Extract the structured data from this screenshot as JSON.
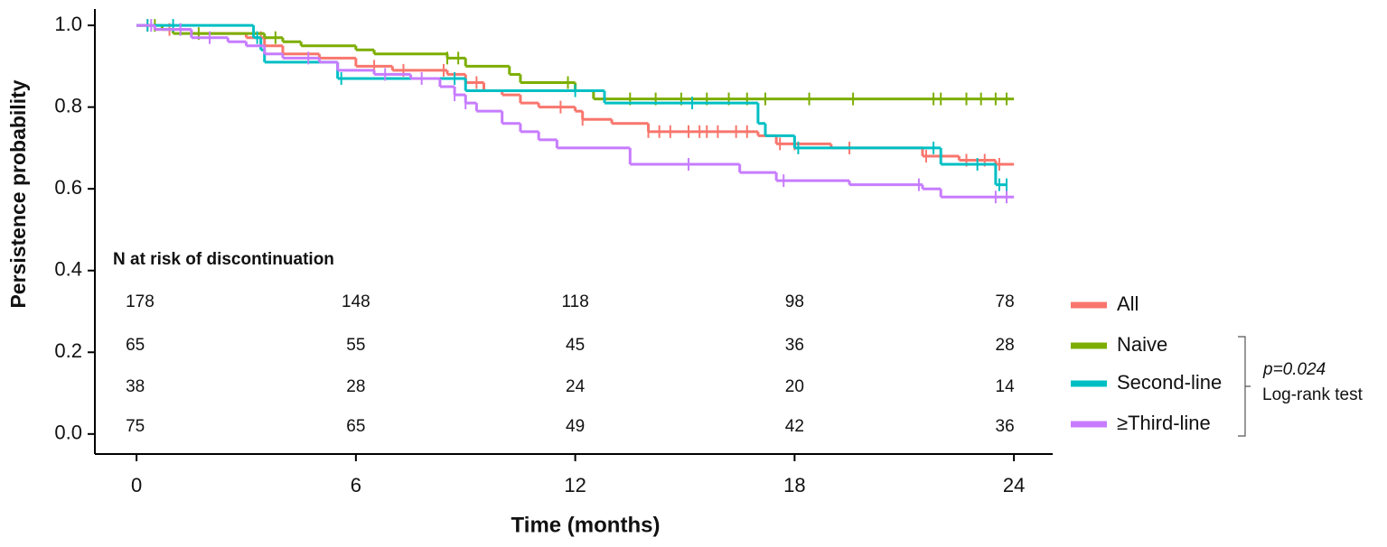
{
  "chart_data": {
    "type": "step",
    "y_label": "Persistence probability",
    "x_label": "Time (months)",
    "xlim": [
      -1.14,
      25.06
    ],
    "ylim": [
      -0.049,
      1.04
    ],
    "xticks": [
      0,
      6,
      12,
      18,
      24
    ],
    "yticks": [
      {
        "value": 0,
        "label": "0.0"
      },
      {
        "value": 0.2,
        "label": "0.2"
      },
      {
        "value": 0.4,
        "label": "0.4"
      },
      {
        "value": 0.6,
        "label": "0.6"
      },
      {
        "value": 0.8,
        "label": "0.8"
      },
      {
        "value": 1,
        "label": "1.0"
      }
    ],
    "series": [
      {
        "name": "All",
        "color": "#f8766d",
        "x": [
          0,
          0.5,
          1.5,
          3,
          3.5,
          4,
          5,
          6,
          7,
          8.5,
          9,
          9.5,
          10,
          10.5,
          11,
          12,
          12.2,
          13,
          14,
          17,
          17.5,
          19,
          21.5,
          22.5,
          23.5,
          24
        ],
        "values": [
          1.0,
          0.99,
          0.98,
          0.97,
          0.95,
          0.93,
          0.92,
          0.9,
          0.89,
          0.88,
          0.86,
          0.84,
          0.83,
          0.81,
          0.8,
          0.79,
          0.77,
          0.76,
          0.74,
          0.73,
          0.71,
          0.7,
          0.68,
          0.67,
          0.66,
          0.66
        ],
        "censored": [
          0.3,
          0.9,
          3.4,
          6.5,
          7.3,
          8.4,
          9.3,
          11.6,
          12.2,
          14.0,
          14.3,
          14.6,
          15.1,
          15.4,
          15.6,
          15.9,
          16.4,
          16.7,
          17.6,
          18.0,
          19.5,
          21.6,
          22.7,
          23.2,
          23.6
        ]
      },
      {
        "name": "Naive",
        "color": "#7cae00",
        "x": [
          0,
          0.7,
          1,
          3.5,
          4,
          4.5,
          6,
          6.5,
          8.5,
          9,
          10.2,
          10.5,
          12,
          12.5,
          24
        ],
        "values": [
          1.0,
          0.99,
          0.98,
          0.97,
          0.96,
          0.95,
          0.94,
          0.93,
          0.92,
          0.9,
          0.88,
          0.86,
          0.84,
          0.82,
          0.82
        ],
        "censored": [
          0.5,
          1.7,
          3.8,
          8.5,
          8.8,
          11.8,
          13.5,
          14.2,
          14.9,
          15.6,
          16.2,
          16.7,
          17.2,
          18.4,
          19.6,
          21.8,
          22.0,
          22.7,
          23.1,
          23.5,
          23.8
        ]
      },
      {
        "name": "Second-line",
        "color": "#00bfc4",
        "x": [
          0,
          3.2,
          3.4,
          3.5,
          5.5,
          9,
          12.8,
          17,
          17.2,
          18,
          22,
          23.5,
          23.8
        ],
        "values": [
          1.0,
          0.97,
          0.94,
          0.91,
          0.87,
          0.84,
          0.81,
          0.76,
          0.73,
          0.7,
          0.66,
          0.61,
          0.61
        ],
        "censored": [
          0.3,
          1.0,
          3.3,
          5.6,
          8.7,
          12.0,
          15.2,
          18.1,
          21.8,
          23.0,
          23.6,
          23.8
        ]
      },
      {
        "name": "≥Third-line",
        "color": "#c77cff",
        "x": [
          0,
          0.5,
          1.5,
          2.5,
          3,
          3.5,
          4,
          5,
          5.5,
          6.5,
          7.5,
          8.3,
          8.7,
          9,
          9.3,
          10,
          10.5,
          11,
          11.5,
          13.5,
          16.5,
          17.5,
          19.5,
          21.5,
          22,
          24
        ],
        "values": [
          1.0,
          0.99,
          0.97,
          0.96,
          0.95,
          0.93,
          0.92,
          0.91,
          0.89,
          0.88,
          0.87,
          0.85,
          0.83,
          0.81,
          0.79,
          0.76,
          0.74,
          0.72,
          0.7,
          0.66,
          0.64,
          0.62,
          0.61,
          0.6,
          0.58,
          0.58
        ],
        "censored": [
          0.4,
          1.2,
          2.0,
          4.7,
          6.8,
          7.8,
          8.7,
          9.0,
          15.1,
          17.7,
          21.4,
          23.5,
          23.8
        ]
      }
    ],
    "risk_table": {
      "title": "N at risk of discontinuation",
      "rows": [
        [
          178,
          148,
          118,
          98,
          78
        ],
        [
          65,
          55,
          45,
          36,
          28
        ],
        [
          38,
          28,
          24,
          20,
          14
        ],
        [
          75,
          65,
          49,
          42,
          36
        ]
      ]
    },
    "test": {
      "p_value": "p=0.024",
      "name": "Log-rank test"
    }
  }
}
